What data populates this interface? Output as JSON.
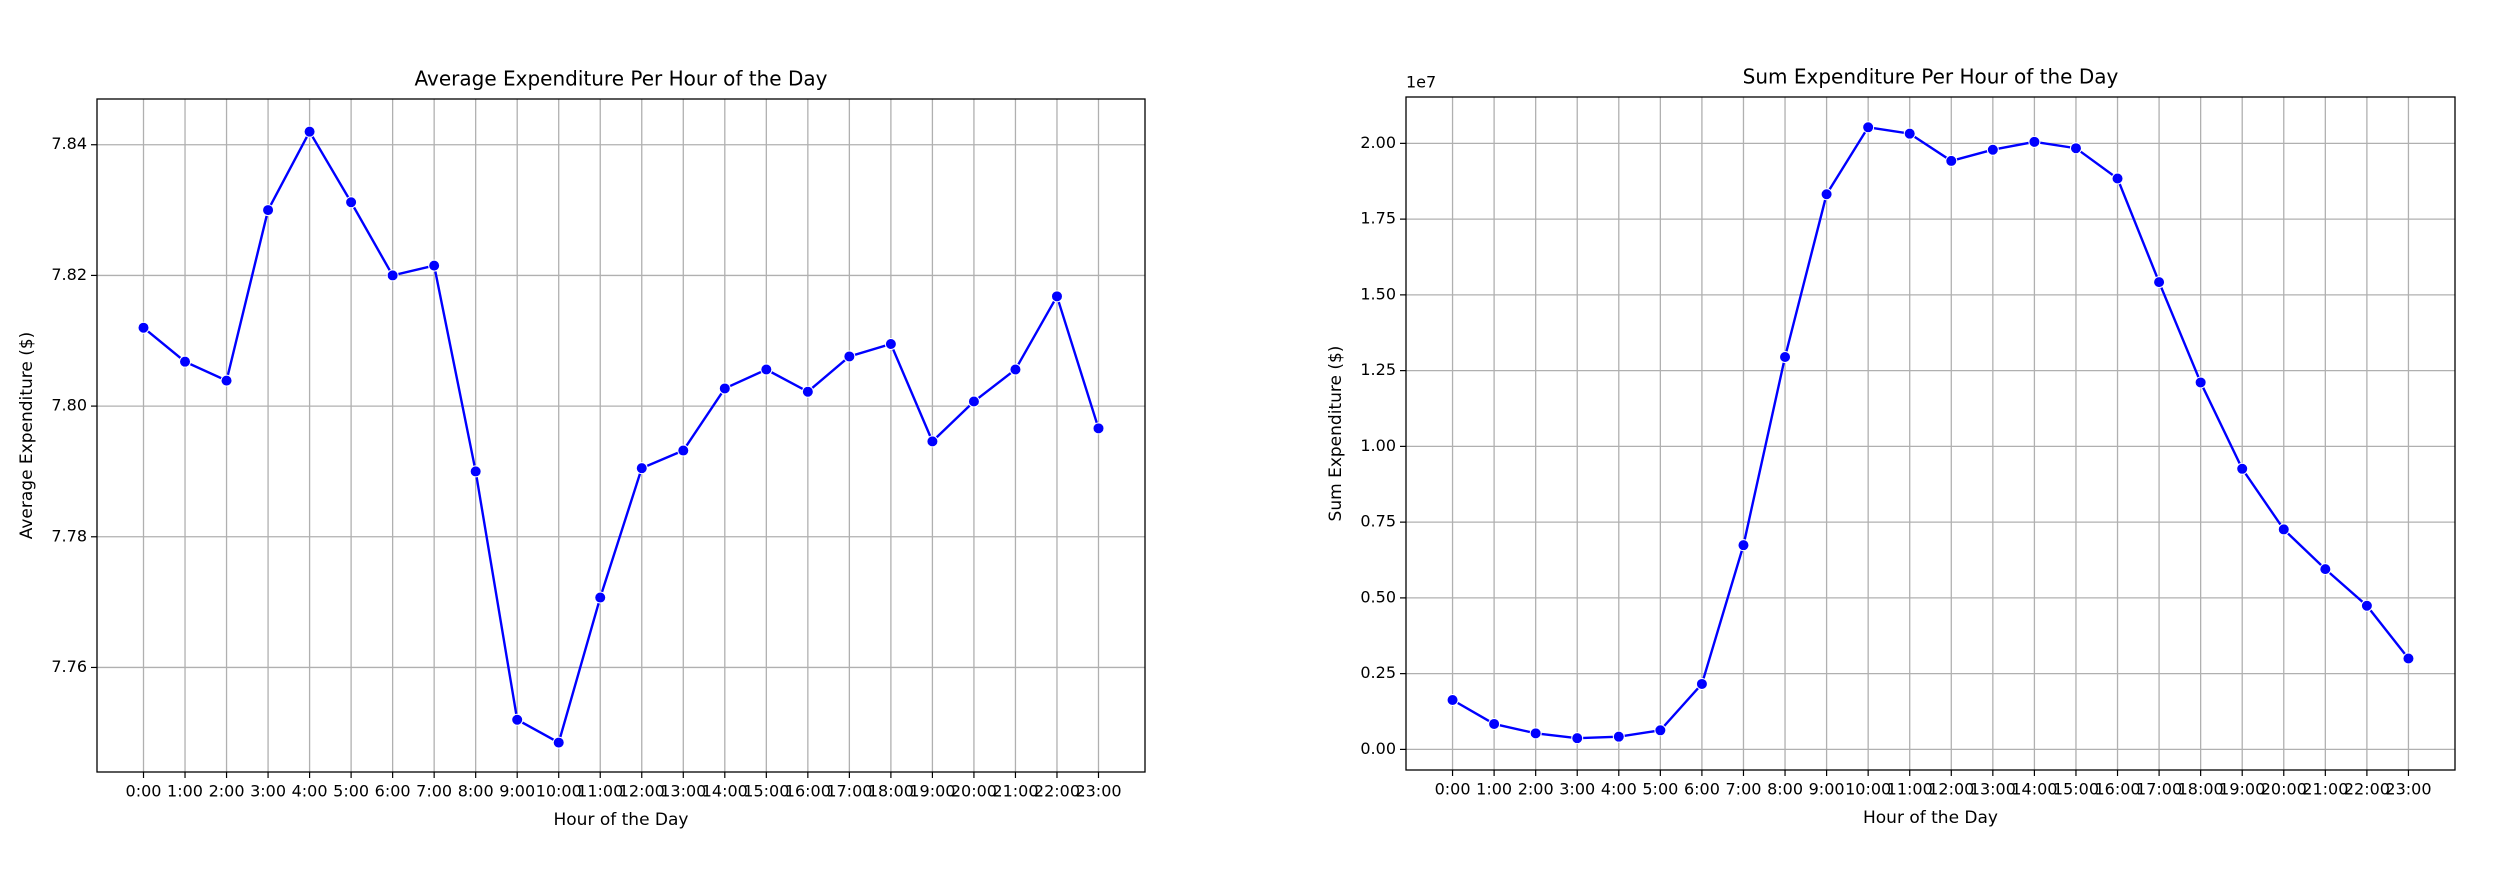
{
  "chart_data": [
    {
      "type": "line",
      "title": "Average Expenditure Per Hour of the Day",
      "xlabel": "Hour of the Day",
      "ylabel": "Average Expenditure ($)",
      "categories": [
        "0:00",
        "1:00",
        "2:00",
        "3:00",
        "4:00",
        "5:00",
        "6:00",
        "7:00",
        "8:00",
        "9:00",
        "10:00",
        "11:00",
        "12:00",
        "13:00",
        "14:00",
        "15:00",
        "16:00",
        "17:00",
        "18:00",
        "19:00",
        "20:00",
        "21:00",
        "22:00",
        "23:00"
      ],
      "values": [
        7.812,
        7.8068,
        7.8039,
        7.83,
        7.842,
        7.8312,
        7.82,
        7.8215,
        7.79,
        7.752,
        7.7485,
        7.7707,
        7.7905,
        7.7932,
        7.8027,
        7.8056,
        7.8022,
        7.8076,
        7.8095,
        7.7946,
        7.8007,
        7.8056,
        7.8168,
        7.7966
      ],
      "color": "#0000ff",
      "ylim": [
        7.744,
        7.847
      ],
      "yticks": [
        7.76,
        7.78,
        {
          "value": 7.8,
          "label": "7.80"
        },
        7.82,
        7.84
      ],
      "grid": true
    },
    {
      "type": "line",
      "title": "Sum Expenditure Per Hour of the Day",
      "xlabel": "Hour of the Day",
      "ylabel": "Sum Expenditure ($)",
      "offset_label": "1e7",
      "categories": [
        "0:00",
        "1:00",
        "2:00",
        "3:00",
        "4:00",
        "5:00",
        "6:00",
        "7:00",
        "8:00",
        "9:00",
        "10:00",
        "11:00",
        "12:00",
        "13:00",
        "14:00",
        "15:00",
        "16:00",
        "17:00",
        "18:00",
        "19:00",
        "20:00",
        "21:00",
        "22:00",
        "23:00"
      ],
      "values": [
        0.163,
        0.084,
        0.053,
        0.037,
        0.042,
        0.063,
        0.216,
        0.674,
        1.295,
        1.832,
        2.053,
        2.032,
        1.942,
        1.979,
        2.005,
        1.984,
        1.884,
        1.542,
        1.211,
        0.926,
        0.726,
        0.595,
        0.474,
        0.3
      ],
      "color": "#0000ff",
      "ylim": [
        -0.068,
        2.153
      ],
      "yticks": [
        {
          "value": 0,
          "label": "0.00"
        },
        0.25,
        {
          "value": 0.5,
          "label": "0.50"
        },
        0.75,
        {
          "value": 1,
          "label": "1.00"
        },
        1.25,
        {
          "value": 1.5,
          "label": "1.50"
        },
        1.75,
        {
          "value": 2,
          "label": "2.00"
        }
      ],
      "grid": true
    }
  ]
}
